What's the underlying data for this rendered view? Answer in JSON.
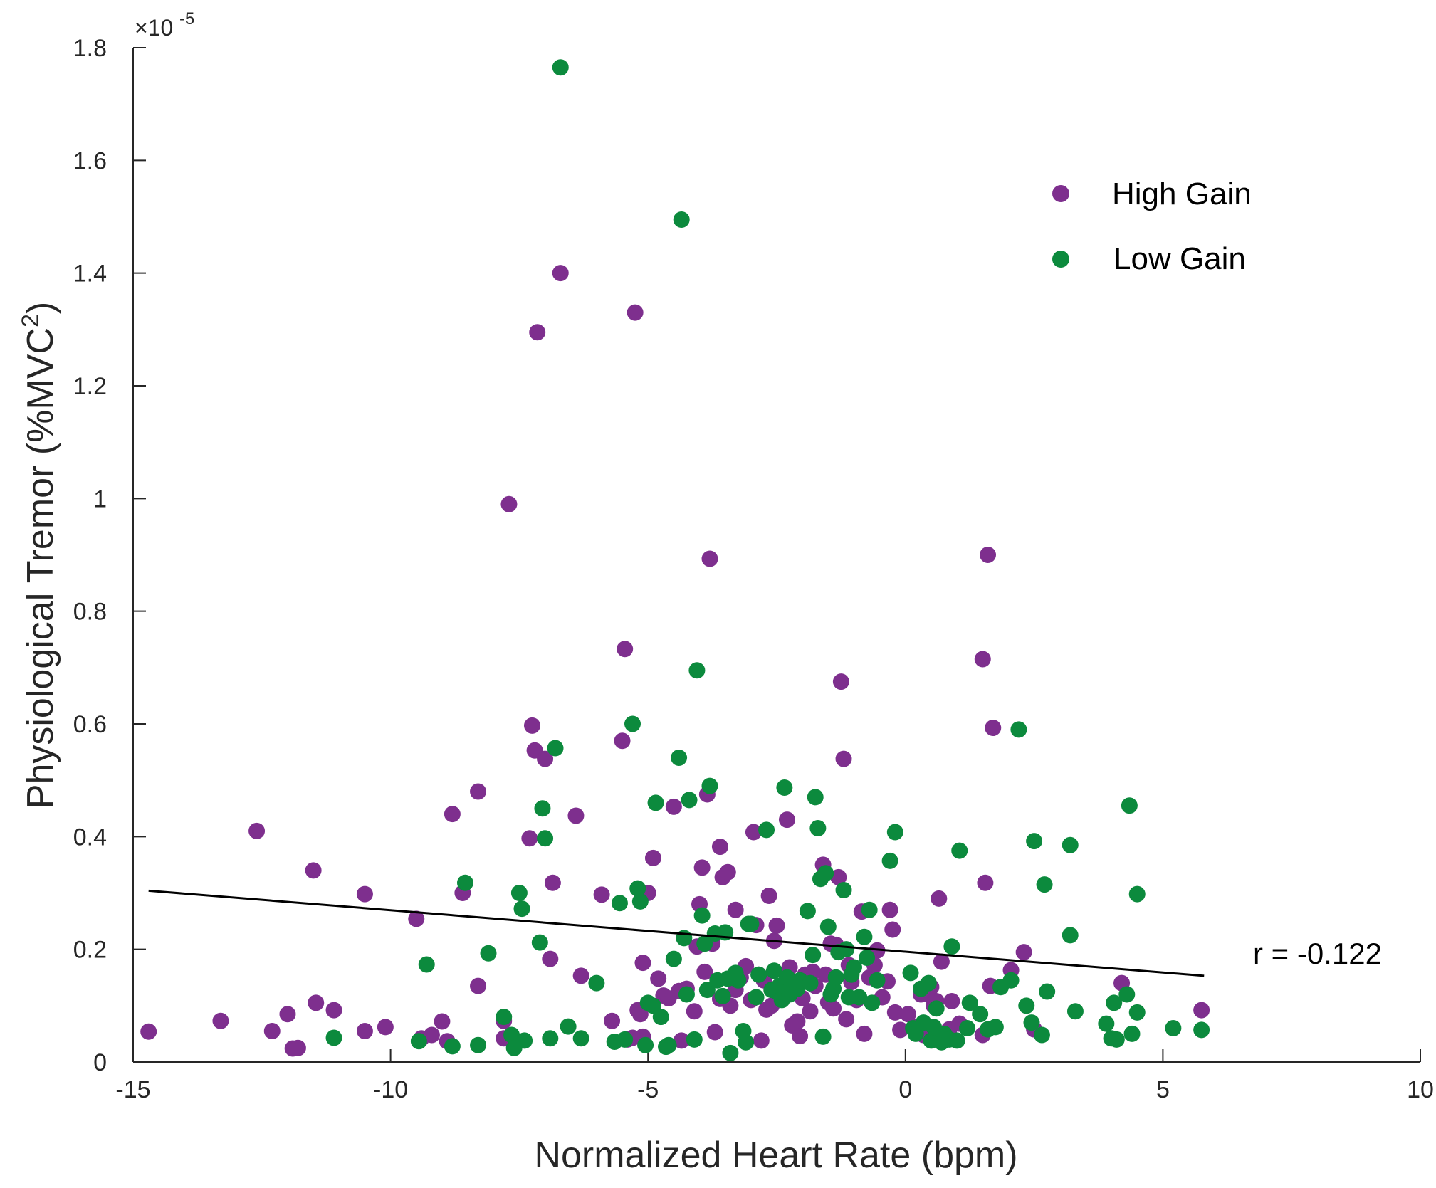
{
  "chart_data": {
    "type": "scatter",
    "title": "",
    "xlabel": "Normalized Heart Rate (bpm)",
    "ylabel_main": "Physiological Tremor (%MVC",
    "ylabel_sup": "2",
    "ylabel_end": ")",
    "y_multiplier": "×10",
    "y_exponent": "-5",
    "xlim": [
      -15,
      10
    ],
    "ylim": [
      0,
      1.8
    ],
    "x_ticks": [
      -15,
      -10,
      -5,
      0,
      5,
      10
    ],
    "x_tick_labels": [
      "-15",
      "-10",
      "-5",
      "0",
      "5",
      "10"
    ],
    "y_ticks": [
      0,
      0.2,
      0.4,
      0.6,
      0.8,
      1.0,
      1.2,
      1.4,
      1.6,
      1.8
    ],
    "y_tick_labels": [
      "0",
      "0.2",
      "0.4",
      "0.6",
      "0.8",
      "1",
      "1.2",
      "1.4",
      "1.6",
      "1.8"
    ],
    "grid": false,
    "legend_position": "top-right",
    "annotation": "r = -0.122",
    "trend_line": {
      "x": [
        -14.7,
        5.8
      ],
      "y": [
        0.304,
        0.153
      ]
    },
    "series": [
      {
        "name": "High Gain",
        "color": "#7E2F8E",
        "points": [
          [
            -14.7,
            0.054
          ],
          [
            -13.3,
            0.073
          ],
          [
            -12.6,
            0.41
          ],
          [
            -12.3,
            0.055
          ],
          [
            -12.0,
            0.085
          ],
          [
            -11.9,
            0.024
          ],
          [
            -11.8,
            0.025
          ],
          [
            -11.5,
            0.34
          ],
          [
            -11.45,
            0.105
          ],
          [
            -11.1,
            0.092
          ],
          [
            -10.5,
            0.298
          ],
          [
            -10.5,
            0.055
          ],
          [
            -10.1,
            0.062
          ],
          [
            -9.5,
            0.254
          ],
          [
            -9.4,
            0.042
          ],
          [
            -9.2,
            0.048
          ],
          [
            -9.0,
            0.072
          ],
          [
            -8.9,
            0.037
          ],
          [
            -8.8,
            0.44
          ],
          [
            -8.6,
            0.3
          ],
          [
            -8.3,
            0.48
          ],
          [
            -8.3,
            0.135
          ],
          [
            -7.8,
            0.042
          ],
          [
            -7.8,
            0.073
          ],
          [
            -7.7,
            0.99
          ],
          [
            -7.3,
            0.397
          ],
          [
            -7.25,
            0.597
          ],
          [
            -7.2,
            0.553
          ],
          [
            -7.15,
            1.295
          ],
          [
            -7.0,
            0.538
          ],
          [
            -6.9,
            0.183
          ],
          [
            -6.85,
            0.318
          ],
          [
            -6.7,
            1.4
          ],
          [
            -6.4,
            0.437
          ],
          [
            -6.3,
            0.153
          ],
          [
            -5.9,
            0.297
          ],
          [
            -5.7,
            0.073
          ],
          [
            -5.5,
            0.57
          ],
          [
            -5.45,
            0.733
          ],
          [
            -5.4,
            0.04
          ],
          [
            -5.3,
            0.043
          ],
          [
            -5.25,
            1.33
          ],
          [
            -5.2,
            0.092
          ],
          [
            -5.15,
            0.085
          ],
          [
            -5.1,
            0.045
          ],
          [
            -5.1,
            0.176
          ],
          [
            -5.0,
            0.3
          ],
          [
            -4.9,
            0.362
          ],
          [
            -4.8,
            0.148
          ],
          [
            -4.7,
            0.118
          ],
          [
            -4.6,
            0.113
          ],
          [
            -4.5,
            0.453
          ],
          [
            -4.4,
            0.126
          ],
          [
            -4.35,
            0.038
          ],
          [
            -4.25,
            0.13
          ],
          [
            -4.1,
            0.09
          ],
          [
            -4.05,
            0.205
          ],
          [
            -4.0,
            0.28
          ],
          [
            -3.95,
            0.345
          ],
          [
            -3.9,
            0.16
          ],
          [
            -3.85,
            0.475
          ],
          [
            -3.8,
            0.893
          ],
          [
            -3.75,
            0.21
          ],
          [
            -3.7,
            0.053
          ],
          [
            -3.6,
            0.112
          ],
          [
            -3.6,
            0.382
          ],
          [
            -3.55,
            0.328
          ],
          [
            -3.45,
            0.337
          ],
          [
            -3.4,
            0.1
          ],
          [
            -3.3,
            0.27
          ],
          [
            -3.3,
            0.128
          ],
          [
            -3.2,
            0.15
          ],
          [
            -3.1,
            0.17
          ],
          [
            -3.0,
            0.11
          ],
          [
            -2.95,
            0.408
          ],
          [
            -2.9,
            0.243
          ],
          [
            -2.85,
            0.155
          ],
          [
            -2.8,
            0.038
          ],
          [
            -2.75,
            0.145
          ],
          [
            -2.7,
            0.093
          ],
          [
            -2.65,
            0.295
          ],
          [
            -2.6,
            0.1
          ],
          [
            -2.55,
            0.215
          ],
          [
            -2.5,
            0.242
          ],
          [
            -2.4,
            0.125
          ],
          [
            -2.3,
            0.43
          ],
          [
            -2.25,
            0.168
          ],
          [
            -2.2,
            0.065
          ],
          [
            -2.1,
            0.072
          ],
          [
            -2.05,
            0.046
          ],
          [
            -2.0,
            0.113
          ],
          [
            -1.95,
            0.155
          ],
          [
            -1.85,
            0.09
          ],
          [
            -1.8,
            0.16
          ],
          [
            -1.75,
            0.135
          ],
          [
            -1.6,
            0.35
          ],
          [
            -1.55,
            0.155
          ],
          [
            -1.5,
            0.106
          ],
          [
            -1.45,
            0.21
          ],
          [
            -1.4,
            0.095
          ],
          [
            -1.35,
            0.208
          ],
          [
            -1.3,
            0.328
          ],
          [
            -1.25,
            0.675
          ],
          [
            -1.2,
            0.538
          ],
          [
            -1.15,
            0.076
          ],
          [
            -1.1,
            0.172
          ],
          [
            -1.05,
            0.142
          ],
          [
            -0.95,
            0.11
          ],
          [
            -0.85,
            0.267
          ],
          [
            -0.8,
            0.05
          ],
          [
            -0.7,
            0.15
          ],
          [
            -0.6,
            0.172
          ],
          [
            -0.55,
            0.198
          ],
          [
            -0.45,
            0.115
          ],
          [
            -0.35,
            0.143
          ],
          [
            -0.3,
            0.27
          ],
          [
            -0.25,
            0.235
          ],
          [
            -0.2,
            0.088
          ],
          [
            -0.1,
            0.057
          ],
          [
            0.05,
            0.085
          ],
          [
            0.2,
            0.062
          ],
          [
            0.3,
            0.12
          ],
          [
            0.35,
            0.048
          ],
          [
            0.45,
            0.12
          ],
          [
            0.5,
            0.133
          ],
          [
            0.55,
            0.1
          ],
          [
            0.6,
            0.108
          ],
          [
            0.65,
            0.29
          ],
          [
            0.7,
            0.178
          ],
          [
            0.85,
            0.058
          ],
          [
            0.9,
            0.108
          ],
          [
            1.05,
            0.068
          ],
          [
            1.5,
            0.048
          ],
          [
            1.5,
            0.715
          ],
          [
            1.55,
            0.318
          ],
          [
            1.6,
            0.9
          ],
          [
            1.65,
            0.135
          ],
          [
            1.7,
            0.593
          ],
          [
            2.05,
            0.163
          ],
          [
            2.3,
            0.195
          ],
          [
            2.5,
            0.058
          ],
          [
            4.2,
            0.14
          ],
          [
            5.75,
            0.092
          ]
        ]
      },
      {
        "name": "Low Gain",
        "color": "#0C8A3D",
        "points": [
          [
            -11.1,
            0.043
          ],
          [
            -9.45,
            0.037
          ],
          [
            -9.3,
            0.173
          ],
          [
            -8.8,
            0.028
          ],
          [
            -8.55,
            0.318
          ],
          [
            -8.3,
            0.03
          ],
          [
            -8.1,
            0.193
          ],
          [
            -7.8,
            0.08
          ],
          [
            -7.65,
            0.048
          ],
          [
            -7.6,
            0.025
          ],
          [
            -7.5,
            0.3
          ],
          [
            -7.45,
            0.272
          ],
          [
            -7.4,
            0.038
          ],
          [
            -7.1,
            0.212
          ],
          [
            -7.05,
            0.45
          ],
          [
            -7.0,
            0.397
          ],
          [
            -6.9,
            0.042
          ],
          [
            -6.8,
            0.557
          ],
          [
            -6.7,
            1.765
          ],
          [
            -6.55,
            0.063
          ],
          [
            -6.3,
            0.042
          ],
          [
            -6.0,
            0.14
          ],
          [
            -5.65,
            0.036
          ],
          [
            -5.55,
            0.282
          ],
          [
            -5.45,
            0.04
          ],
          [
            -5.3,
            0.6
          ],
          [
            -5.2,
            0.308
          ],
          [
            -5.15,
            0.285
          ],
          [
            -5.05,
            0.03
          ],
          [
            -5.0,
            0.105
          ],
          [
            -4.9,
            0.1
          ],
          [
            -4.85,
            0.46
          ],
          [
            -4.75,
            0.08
          ],
          [
            -4.65,
            0.027
          ],
          [
            -4.6,
            0.03
          ],
          [
            -4.5,
            0.183
          ],
          [
            -4.4,
            0.54
          ],
          [
            -4.35,
            1.495
          ],
          [
            -4.3,
            0.22
          ],
          [
            -4.25,
            0.12
          ],
          [
            -4.2,
            0.465
          ],
          [
            -4.1,
            0.04
          ],
          [
            -4.05,
            0.695
          ],
          [
            -3.95,
            0.26
          ],
          [
            -3.9,
            0.21
          ],
          [
            -3.85,
            0.128
          ],
          [
            -3.8,
            0.49
          ],
          [
            -3.7,
            0.228
          ],
          [
            -3.65,
            0.145
          ],
          [
            -3.55,
            0.117
          ],
          [
            -3.5,
            0.23
          ],
          [
            -3.45,
            0.148
          ],
          [
            -3.4,
            0.016
          ],
          [
            -3.3,
            0.158
          ],
          [
            -3.25,
            0.145
          ],
          [
            -3.15,
            0.055
          ],
          [
            -3.1,
            0.035
          ],
          [
            -3.05,
            0.245
          ],
          [
            -3.0,
            0.245
          ],
          [
            -2.9,
            0.115
          ],
          [
            -2.85,
            0.155
          ],
          [
            -2.7,
            0.412
          ],
          [
            -2.6,
            0.128
          ],
          [
            -2.55,
            0.162
          ],
          [
            -2.5,
            0.125
          ],
          [
            -2.45,
            0.135
          ],
          [
            -2.4,
            0.11
          ],
          [
            -2.35,
            0.487
          ],
          [
            -2.3,
            0.15
          ],
          [
            -2.25,
            0.12
          ],
          [
            -2.2,
            0.128
          ],
          [
            -2.15,
            0.14
          ],
          [
            -2.1,
            0.13
          ],
          [
            -2.05,
            0.145
          ],
          [
            -1.9,
            0.268
          ],
          [
            -1.85,
            0.14
          ],
          [
            -1.8,
            0.19
          ],
          [
            -1.75,
            0.47
          ],
          [
            -1.7,
            0.415
          ],
          [
            -1.65,
            0.325
          ],
          [
            -1.6,
            0.045
          ],
          [
            -1.55,
            0.335
          ],
          [
            -1.5,
            0.24
          ],
          [
            -1.45,
            0.12
          ],
          [
            -1.4,
            0.13
          ],
          [
            -1.35,
            0.15
          ],
          [
            -1.3,
            0.195
          ],
          [
            -1.2,
            0.305
          ],
          [
            -1.15,
            0.2
          ],
          [
            -1.1,
            0.115
          ],
          [
            -1.05,
            0.155
          ],
          [
            -1.0,
            0.168
          ],
          [
            -0.9,
            0.115
          ],
          [
            -0.8,
            0.222
          ],
          [
            -0.75,
            0.185
          ],
          [
            -0.7,
            0.27
          ],
          [
            -0.65,
            0.105
          ],
          [
            -0.55,
            0.145
          ],
          [
            -0.3,
            0.357
          ],
          [
            -0.2,
            0.408
          ],
          [
            0.1,
            0.158
          ],
          [
            0.15,
            0.06
          ],
          [
            0.2,
            0.05
          ],
          [
            0.3,
            0.13
          ],
          [
            0.35,
            0.07
          ],
          [
            0.45,
            0.14
          ],
          [
            0.5,
            0.038
          ],
          [
            0.55,
            0.062
          ],
          [
            0.6,
            0.095
          ],
          [
            0.7,
            0.035
          ],
          [
            0.75,
            0.05
          ],
          [
            0.85,
            0.04
          ],
          [
            0.9,
            0.205
          ],
          [
            1.0,
            0.038
          ],
          [
            1.05,
            0.375
          ],
          [
            1.2,
            0.06
          ],
          [
            1.25,
            0.105
          ],
          [
            1.45,
            0.085
          ],
          [
            1.6,
            0.058
          ],
          [
            1.75,
            0.062
          ],
          [
            1.85,
            0.133
          ],
          [
            2.05,
            0.145
          ],
          [
            2.2,
            0.59
          ],
          [
            2.35,
            0.1
          ],
          [
            2.45,
            0.07
          ],
          [
            2.5,
            0.392
          ],
          [
            2.65,
            0.048
          ],
          [
            2.7,
            0.315
          ],
          [
            2.75,
            0.125
          ],
          [
            3.2,
            0.385
          ],
          [
            3.2,
            0.225
          ],
          [
            3.3,
            0.09
          ],
          [
            3.9,
            0.068
          ],
          [
            4.0,
            0.042
          ],
          [
            4.05,
            0.105
          ],
          [
            4.1,
            0.04
          ],
          [
            4.3,
            0.12
          ],
          [
            4.35,
            0.455
          ],
          [
            4.4,
            0.05
          ],
          [
            4.5,
            0.088
          ],
          [
            4.5,
            0.298
          ],
          [
            5.2,
            0.06
          ],
          [
            5.75,
            0.057
          ]
        ]
      }
    ]
  }
}
